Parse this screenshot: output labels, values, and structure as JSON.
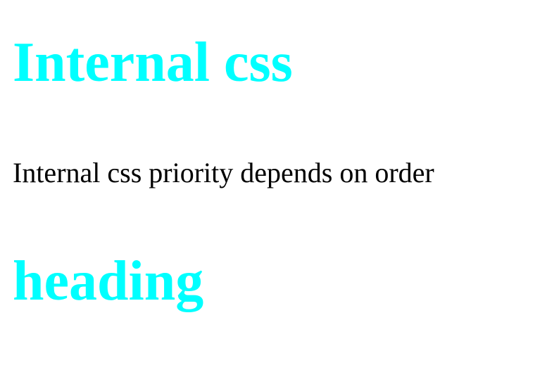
{
  "heading_color": "#00FFFF",
  "text_color": "#000000",
  "content": {
    "title": "Internal css",
    "paragraph": "Internal css priority depends on order",
    "subheading": "heading"
  }
}
